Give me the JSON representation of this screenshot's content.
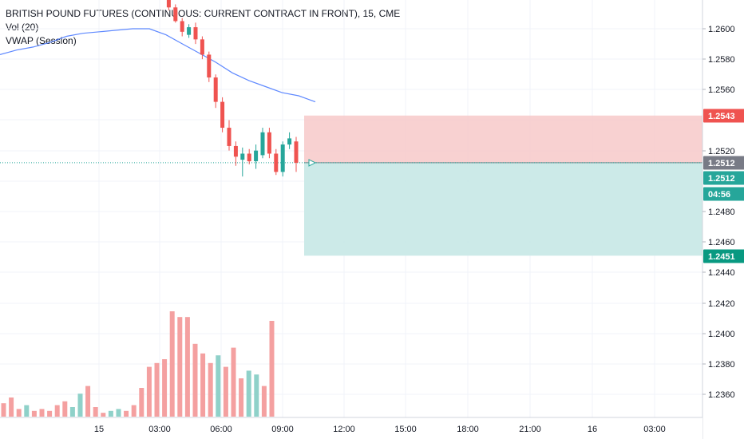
{
  "chart_data": {
    "type": "candlestick",
    "title": "BRITISH POUND FUTURES (CONTINUOUS: CURRENT CONTRACT IN FRONT), 15, CME",
    "indicators": [
      "Vol (20)",
      "VWAP (Session)"
    ],
    "y_axis": {
      "ticks": [
        "1.2600",
        "1.2580",
        "1.2560",
        "1.2520",
        "1.2480",
        "1.2460",
        "1.2440",
        "1.2420",
        "1.2400",
        "1.2380",
        "1.2360"
      ],
      "range": [
        1.2343,
        1.2622
      ]
    },
    "x_axis": {
      "ticks": [
        "15",
        "03:00",
        "06:00",
        "09:00",
        "12:00",
        "15:00",
        "18:00",
        "21:00",
        "16",
        "03:00"
      ]
    },
    "price_labels": {
      "stop": {
        "value": "1.2543",
        "color": "#ef5350"
      },
      "last": {
        "value": "1.2512",
        "color": "#787b86"
      },
      "target_entry": {
        "value": "1.2512",
        "color": "#26a69a"
      },
      "countdown": {
        "value": "04:56",
        "color": "#26a69a"
      },
      "target": {
        "value": "1.2451",
        "color": "#089981"
      }
    },
    "position": {
      "entry": 1.2512,
      "stop": 1.2543,
      "target": 1.2451,
      "loss_zone_color": "#f7c9c9",
      "profit_zone_color": "#c6e8e5"
    },
    "candles": [
      {
        "o": 1.2627,
        "h": 1.263,
        "l": 1.2621,
        "c": 1.2623
      },
      {
        "o": 1.2623,
        "h": 1.2625,
        "l": 1.2612,
        "c": 1.2614
      },
      {
        "o": 1.2614,
        "h": 1.2616,
        "l": 1.2604,
        "c": 1.2605
      },
      {
        "o": 1.2605,
        "h": 1.2607,
        "l": 1.2595,
        "c": 1.2598
      },
      {
        "o": 1.2596,
        "h": 1.2603,
        "l": 1.2594,
        "c": 1.2601
      },
      {
        "o": 1.2601,
        "h": 1.2604,
        "l": 1.259,
        "c": 1.2593
      },
      {
        "o": 1.2593,
        "h": 1.2595,
        "l": 1.258,
        "c": 1.2583
      },
      {
        "o": 1.2583,
        "h": 1.2585,
        "l": 1.2565,
        "c": 1.2568
      },
      {
        "o": 1.2568,
        "h": 1.257,
        "l": 1.2548,
        "c": 1.2552
      },
      {
        "o": 1.2552,
        "h": 1.2555,
        "l": 1.2532,
        "c": 1.2535
      },
      {
        "o": 1.2535,
        "h": 1.254,
        "l": 1.252,
        "c": 1.2523
      },
      {
        "o": 1.2523,
        "h": 1.2526,
        "l": 1.251,
        "c": 1.2516
      },
      {
        "o": 1.2514,
        "h": 1.2522,
        "l": 1.2503,
        "c": 1.2518
      },
      {
        "o": 1.2518,
        "h": 1.2521,
        "l": 1.2511,
        "c": 1.2513
      },
      {
        "o": 1.2513,
        "h": 1.2524,
        "l": 1.2508,
        "c": 1.252
      },
      {
        "o": 1.2517,
        "h": 1.2535,
        "l": 1.2515,
        "c": 1.2532
      },
      {
        "o": 1.2532,
        "h": 1.2535,
        "l": 1.2515,
        "c": 1.2518
      },
      {
        "o": 1.2518,
        "h": 1.2521,
        "l": 1.2504,
        "c": 1.2506
      },
      {
        "o": 1.2506,
        "h": 1.2526,
        "l": 1.2503,
        "c": 1.2524
      },
      {
        "o": 1.2524,
        "h": 1.2532,
        "l": 1.2521,
        "c": 1.2528
      },
      {
        "o": 1.2526,
        "h": 1.2529,
        "l": 1.2506,
        "c": 1.2512
      }
    ],
    "volume": [
      {
        "v": 0.07,
        "up": false
      },
      {
        "v": 0.1,
        "up": false
      },
      {
        "v": 0.04,
        "up": false
      },
      {
        "v": 0.06,
        "up": true
      },
      {
        "v": 0.03,
        "up": false
      },
      {
        "v": 0.04,
        "up": false
      },
      {
        "v": 0.03,
        "up": false
      },
      {
        "v": 0.06,
        "up": false
      },
      {
        "v": 0.08,
        "up": false
      },
      {
        "v": 0.05,
        "up": true
      },
      {
        "v": 0.12,
        "up": true
      },
      {
        "v": 0.16,
        "up": false
      },
      {
        "v": 0.05,
        "up": false
      },
      {
        "v": 0.02,
        "up": false
      },
      {
        "v": 0.03,
        "up": true
      },
      {
        "v": 0.04,
        "up": true
      },
      {
        "v": 0.03,
        "up": false
      },
      {
        "v": 0.06,
        "up": false
      },
      {
        "v": 0.15,
        "up": false
      },
      {
        "v": 0.26,
        "up": false
      },
      {
        "v": 0.28,
        "up": false
      },
      {
        "v": 0.3,
        "up": false
      },
      {
        "v": 0.55,
        "up": false
      },
      {
        "v": 0.52,
        "up": false
      },
      {
        "v": 0.52,
        "up": false
      },
      {
        "v": 0.38,
        "up": false
      },
      {
        "v": 0.33,
        "up": false
      },
      {
        "v": 0.28,
        "up": false
      },
      {
        "v": 0.32,
        "up": true
      },
      {
        "v": 0.26,
        "up": false
      },
      {
        "v": 0.36,
        "up": false
      },
      {
        "v": 0.2,
        "up": false
      },
      {
        "v": 0.24,
        "up": true
      },
      {
        "v": 0.22,
        "up": true
      },
      {
        "v": 0.16,
        "up": false
      },
      {
        "v": 0.5,
        "up": false
      }
    ],
    "vwap": [
      1.2583,
      1.2586,
      1.2588,
      1.2591,
      1.2595,
      1.2597,
      1.2598,
      1.2599,
      1.26,
      1.26,
      1.2596,
      1.259,
      1.2584,
      1.2578,
      1.2571,
      1.2566,
      1.2562,
      1.2558,
      1.2556,
      1.2552
    ]
  }
}
